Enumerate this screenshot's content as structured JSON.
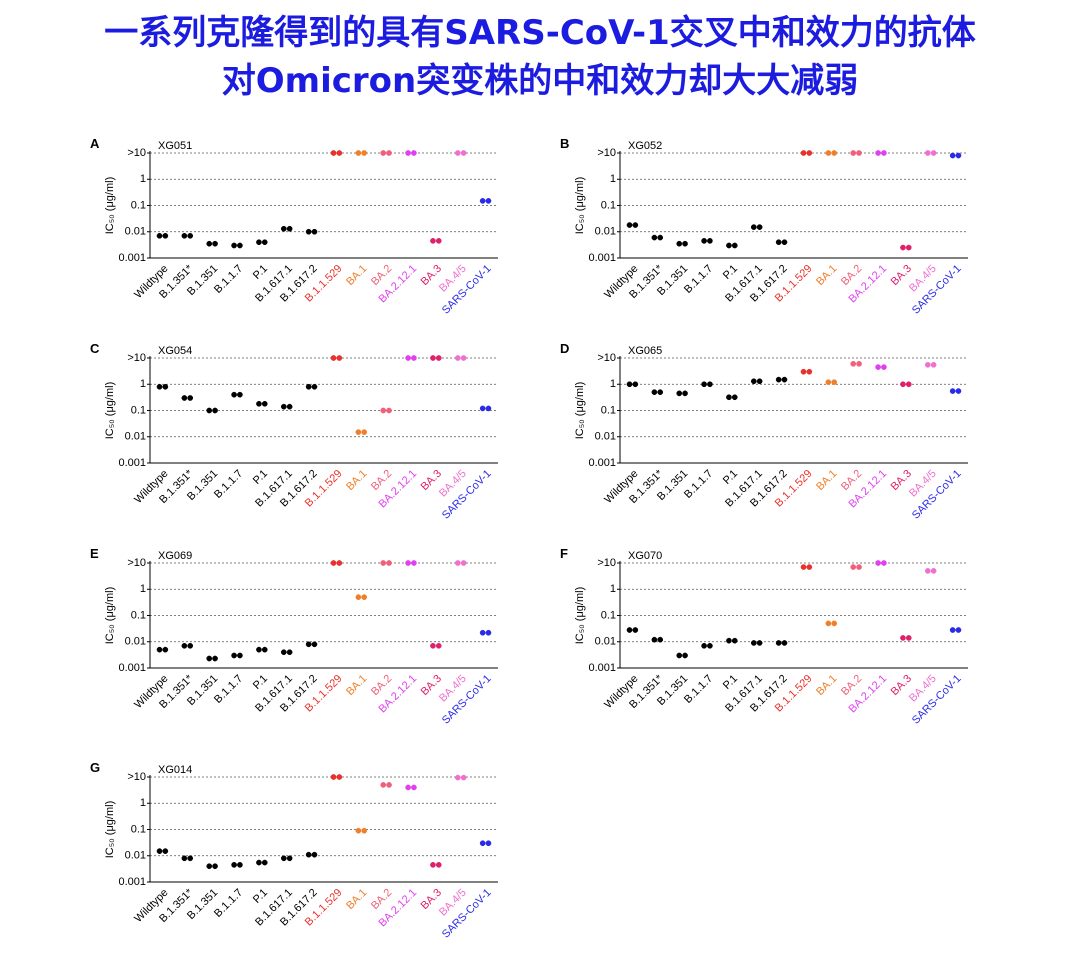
{
  "title": [
    "一系列克隆得到的具有SARS-CoV-1交叉中和效力的抗体",
    "对Omicron突变株的中和效力却大大减弱"
  ],
  "chart_data": [
    {
      "type": "dot",
      "panel": "A",
      "name": "XG051",
      "ylabel": "IC₅₀ (μg/ml)",
      "log_scale": true,
      "grid": true,
      "ylim": [
        0.001,
        10
      ],
      "yticks": [
        0.001,
        0.01,
        0.1,
        1,
        {
          "value": 10,
          "label": ">10"
        }
      ],
      "categories": [
        "Wildtype",
        "B.1.351*",
        "B.1.351",
        "B.1.1.7",
        "P.1",
        "B.1.617.1",
        "B.1.617.2",
        "B.1.1.529",
        "BA.1",
        "BA.2",
        "BA.2.12.1",
        "BA.3",
        "BA.4/5",
        "SARS-CoV-1"
      ],
      "colors": [
        "#000000",
        "#000000",
        "#000000",
        "#000000",
        "#000000",
        "#000000",
        "#000000",
        "#e8312a",
        "#f07f2a",
        "#f0607a",
        "#e040f0",
        "#e0206a",
        "#f070d0",
        "#2a2ae8"
      ],
      "values": [
        0.007,
        0.007,
        0.0035,
        0.003,
        0.004,
        0.013,
        0.01,
        10,
        10,
        10,
        10,
        0.0045,
        10,
        0.15
      ]
    },
    {
      "type": "dot",
      "panel": "B",
      "name": "XG052",
      "ylabel": "IC₅₀ (μg/ml)",
      "log_scale": true,
      "grid": true,
      "ylim": [
        0.001,
        10
      ],
      "yticks": [
        0.001,
        0.01,
        0.1,
        1,
        {
          "value": 10,
          "label": ">10"
        }
      ],
      "categories": [
        "Wildtype",
        "B.1.351*",
        "B.1.351",
        "B.1.1.7",
        "P.1",
        "B.1.617.1",
        "B.1.617.2",
        "B.1.1.529",
        "BA.1",
        "BA.2",
        "BA.2.12.1",
        "BA.3",
        "BA.4/5",
        "SARS-CoV-1"
      ],
      "colors": [
        "#000000",
        "#000000",
        "#000000",
        "#000000",
        "#000000",
        "#000000",
        "#000000",
        "#e8312a",
        "#f07f2a",
        "#f0607a",
        "#e040f0",
        "#e0206a",
        "#f070d0",
        "#2a2ae8"
      ],
      "values": [
        0.018,
        0.006,
        0.0035,
        0.0045,
        0.003,
        0.015,
        0.004,
        10,
        10,
        10,
        10,
        0.0025,
        10,
        8
      ]
    },
    {
      "type": "dot",
      "panel": "C",
      "name": "XG054",
      "ylabel": "IC₅₀ (μg/ml)",
      "log_scale": true,
      "grid": true,
      "ylim": [
        0.001,
        10
      ],
      "yticks": [
        0.001,
        0.01,
        0.1,
        1,
        {
          "value": 10,
          "label": ">10"
        }
      ],
      "categories": [
        "Wildtype",
        "B.1.351*",
        "B.1.351",
        "B.1.1.7",
        "P.1",
        "B.1.617.1",
        "B.1.617.2",
        "B.1.1.529",
        "BA.1",
        "BA.2",
        "BA.2.12.1",
        "BA.3",
        "BA.4/5",
        "SARS-CoV-1"
      ],
      "colors": [
        "#000000",
        "#000000",
        "#000000",
        "#000000",
        "#000000",
        "#000000",
        "#000000",
        "#e8312a",
        "#f07f2a",
        "#f0607a",
        "#e040f0",
        "#e0206a",
        "#f070d0",
        "#2a2ae8"
      ],
      "values": [
        0.8,
        0.3,
        0.1,
        0.4,
        0.18,
        0.14,
        0.8,
        10,
        0.015,
        0.1,
        10,
        10,
        10,
        0.12
      ]
    },
    {
      "type": "dot",
      "panel": "D",
      "name": "XG065",
      "ylabel": "IC₅₀ (μg/ml)",
      "log_scale": true,
      "grid": true,
      "ylim": [
        0.001,
        10
      ],
      "yticks": [
        0.001,
        0.01,
        0.1,
        1,
        {
          "value": 10,
          "label": ">10"
        }
      ],
      "categories": [
        "Wildtype",
        "B.1.351*",
        "B.1.351",
        "B.1.1.7",
        "P.1",
        "B.1.617.1",
        "B.1.617.2",
        "B.1.1.529",
        "BA.1",
        "BA.2",
        "BA.2.12.1",
        "BA.3",
        "BA.4/5",
        "SARS-CoV-1"
      ],
      "colors": [
        "#000000",
        "#000000",
        "#000000",
        "#000000",
        "#000000",
        "#000000",
        "#000000",
        "#e8312a",
        "#f07f2a",
        "#f0607a",
        "#e040f0",
        "#e0206a",
        "#f070d0",
        "#2a2ae8"
      ],
      "values": [
        1,
        0.5,
        0.45,
        1,
        0.32,
        1.3,
        1.5,
        3,
        1.2,
        6,
        4.5,
        1,
        5.5,
        0.55
      ]
    },
    {
      "type": "dot",
      "panel": "E",
      "name": "XG069",
      "ylabel": "IC₅₀ (μg/ml)",
      "log_scale": true,
      "grid": true,
      "ylim": [
        0.001,
        10
      ],
      "yticks": [
        0.001,
        0.01,
        0.1,
        1,
        {
          "value": 10,
          "label": ">10"
        }
      ],
      "categories": [
        "Wildtype",
        "B.1.351*",
        "B.1.351",
        "B.1.1.7",
        "P.1",
        "B.1.617.1",
        "B.1.617.2",
        "B.1.1.529",
        "BA.1",
        "BA.2",
        "BA.2.12.1",
        "BA.3",
        "BA.4/5",
        "SARS-CoV-1"
      ],
      "colors": [
        "#000000",
        "#000000",
        "#000000",
        "#000000",
        "#000000",
        "#000000",
        "#000000",
        "#e8312a",
        "#f07f2a",
        "#f0607a",
        "#e040f0",
        "#e0206a",
        "#f070d0",
        "#2a2ae8"
      ],
      "values": [
        0.005,
        0.007,
        0.0023,
        0.003,
        0.005,
        0.004,
        0.008,
        10,
        0.5,
        10,
        10,
        0.007,
        10,
        0.022
      ]
    },
    {
      "type": "dot",
      "panel": "F",
      "name": "XG070",
      "ylabel": "IC₅₀ (μg/ml)",
      "log_scale": true,
      "grid": true,
      "ylim": [
        0.001,
        10
      ],
      "yticks": [
        0.001,
        0.01,
        0.1,
        1,
        {
          "value": 10,
          "label": ">10"
        }
      ],
      "categories": [
        "Wildtype",
        "B.1.351*",
        "B.1.351",
        "B.1.1.7",
        "P.1",
        "B.1.617.1",
        "B.1.617.2",
        "B.1.1.529",
        "BA.1",
        "BA.2",
        "BA.2.12.1",
        "BA.3",
        "BA.4/5",
        "SARS-CoV-1"
      ],
      "colors": [
        "#000000",
        "#000000",
        "#000000",
        "#000000",
        "#000000",
        "#000000",
        "#000000",
        "#e8312a",
        "#f07f2a",
        "#f0607a",
        "#e040f0",
        "#e0206a",
        "#f070d0",
        "#2a2ae8"
      ],
      "values": [
        0.028,
        0.012,
        0.003,
        0.007,
        0.011,
        0.009,
        0.009,
        7,
        0.05,
        7,
        10,
        0.014,
        5,
        0.028
      ]
    },
    {
      "type": "dot",
      "panel": "G",
      "name": "XG014",
      "ylabel": "IC₅₀ (μg/ml)",
      "log_scale": true,
      "grid": true,
      "ylim": [
        0.001,
        10
      ],
      "yticks": [
        0.001,
        0.01,
        0.1,
        1,
        {
          "value": 10,
          "label": ">10"
        }
      ],
      "categories": [
        "Wildtype",
        "B.1.351*",
        "B.1.351",
        "B.1.1.7",
        "P.1",
        "B.1.617.1",
        "B.1.617.2",
        "B.1.1.529",
        "BA.1",
        "BA.2",
        "BA.2.12.1",
        "BA.3",
        "BA.4/5",
        "SARS-CoV-1"
      ],
      "colors": [
        "#000000",
        "#000000",
        "#000000",
        "#000000",
        "#000000",
        "#000000",
        "#000000",
        "#e8312a",
        "#f07f2a",
        "#f0607a",
        "#e040f0",
        "#e0206a",
        "#f070d0",
        "#2a2ae8"
      ],
      "values": [
        0.015,
        0.008,
        0.004,
        0.0045,
        0.0055,
        0.008,
        0.011,
        10,
        0.09,
        5,
        4,
        0.0045,
        9.5,
        0.03
      ]
    }
  ]
}
